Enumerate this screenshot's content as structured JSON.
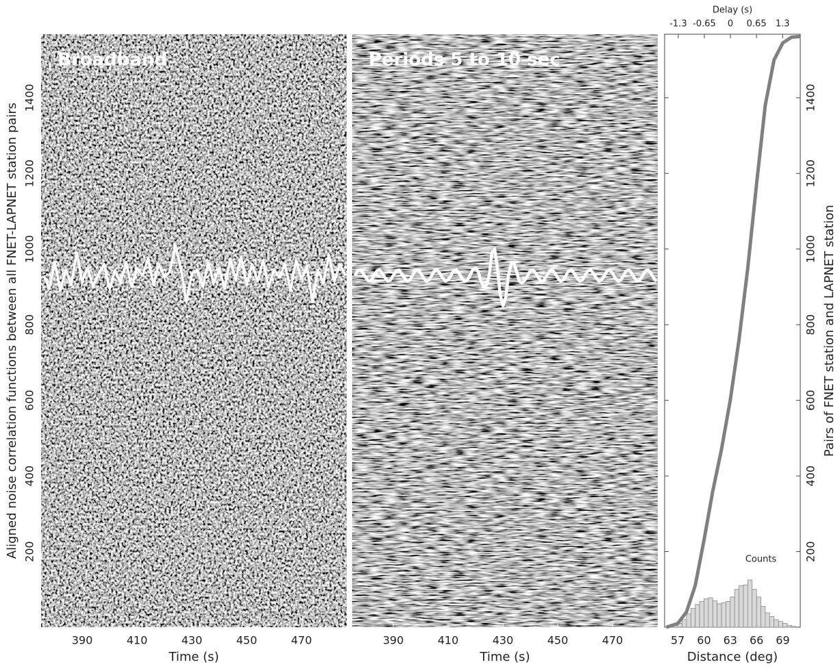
{
  "chart_data": [
    {
      "type": "line",
      "title": "Broadband",
      "x_label": "Time (s)",
      "y_label": "Aligned noise correlation functions between all FNET-LAPNET station pairs",
      "xlim": [
        375,
        486.5
      ],
      "xticks": [
        390,
        410,
        430,
        450,
        470
      ],
      "ylim": [
        0,
        1568
      ],
      "yticks": [
        200,
        400,
        600,
        800,
        1000,
        1200,
        1400
      ],
      "series": [
        {
          "color": "#ffffff",
          "x": [
            376,
            378,
            380,
            382,
            384,
            386,
            388,
            390,
            392,
            394,
            396,
            398,
            400,
            402,
            404,
            406,
            408,
            410,
            412,
            414,
            416,
            418,
            420,
            422,
            424,
            426,
            428,
            430,
            432,
            434,
            436,
            438,
            440,
            442,
            444,
            446,
            448,
            450,
            452,
            454,
            456,
            458,
            460,
            462,
            464,
            466,
            468,
            470,
            472,
            474,
            476,
            478,
            480,
            482,
            484,
            486
          ],
          "values": [
            930,
            895,
            965,
            890,
            945,
            905,
            990,
            915,
            950,
            900,
            935,
            960,
            895,
            945,
            910,
            965,
            900,
            950,
            930,
            975,
            905,
            960,
            925,
            940,
            1010,
            950,
            860,
            935,
            945,
            900,
            965,
            910,
            950,
            895,
            975,
            920,
            980,
            905,
            960,
            915,
            970,
            900,
            945,
            925,
            960,
            890,
            970,
            920,
            955,
            860,
            945,
            910,
            985,
            915,
            960,
            930
          ]
        }
      ]
    },
    {
      "type": "line",
      "title": "Periods 5 to 10 sec",
      "x_label": "Time (s)",
      "xlim": [
        375,
        486.5
      ],
      "xticks": [
        390,
        410,
        430,
        450,
        470
      ],
      "ylim": [
        0,
        1568
      ],
      "series": [
        {
          "color": "#ffffff",
          "x": [
            376,
            377,
            378,
            379,
            380,
            381,
            382,
            383,
            384,
            385,
            386,
            387,
            388,
            389,
            390,
            391,
            392,
            393,
            394,
            395,
            396,
            397,
            398,
            399,
            400,
            401,
            402,
            403,
            404,
            405,
            406,
            407,
            408,
            409,
            410,
            411,
            412,
            413,
            414,
            415,
            416,
            417,
            418,
            419,
            420,
            421,
            422,
            423,
            424,
            425,
            426,
            427,
            428,
            429,
            430,
            431,
            432,
            433,
            434,
            435,
            436,
            437,
            438,
            439,
            440,
            441,
            442,
            443,
            444,
            445,
            446,
            447,
            448,
            449,
            450,
            451,
            452,
            453,
            454,
            455,
            456,
            457,
            458,
            459,
            460,
            461,
            462,
            463,
            464,
            465,
            466,
            467,
            468,
            469,
            470,
            471,
            472,
            473,
            474,
            475,
            476,
            477,
            478,
            479,
            480,
            481,
            482,
            483,
            484,
            485,
            486
          ],
          "values": [
            930,
            942,
            945,
            936,
            924,
            915,
            918,
            930,
            942,
            945,
            936,
            924,
            915,
            918,
            930,
            942,
            945,
            936,
            924,
            915,
            918,
            930,
            942,
            945,
            936,
            924,
            915,
            918,
            930,
            942,
            945,
            936,
            924,
            915,
            918,
            930,
            942,
            945,
            936,
            924,
            915,
            918,
            930,
            945,
            950,
            940,
            915,
            900,
            905,
            930,
            990,
            1000,
            950,
            880,
            850,
            870,
            930,
            960,
            965,
            940,
            915,
            910,
            918,
            930,
            942,
            945,
            936,
            924,
            915,
            918,
            930,
            942,
            945,
            936,
            924,
            915,
            918,
            930,
            942,
            945,
            936,
            924,
            915,
            918,
            930,
            942,
            945,
            936,
            924,
            915,
            918,
            930,
            942,
            945,
            936,
            924,
            915,
            918,
            930,
            942,
            945,
            936,
            924,
            915,
            918,
            930,
            942,
            945,
            936,
            924,
            915
          ]
        }
      ]
    },
    {
      "type": "line",
      "x_label": "Distance (deg)",
      "x2_label": "Delay (s)",
      "y_label": "Pairs of FNET station and LAPNET station",
      "xlim": [
        55.5,
        71
      ],
      "xticks": [
        57,
        60,
        63,
        66,
        69
      ],
      "x2lim": [
        -1.64,
        1.74
      ],
      "x2ticks": [
        -1.3,
        -0.65,
        0,
        0.65,
        1.3
      ],
      "ylim": [
        0,
        1568
      ],
      "yticks": [
        200,
        400,
        600,
        800,
        1000,
        1200,
        1400
      ],
      "series": [
        {
          "color": "#808080",
          "x": [
            55.7,
            57,
            58,
            59,
            60,
            61,
            62,
            63,
            64,
            65,
            66,
            67,
            68,
            69,
            70,
            71
          ],
          "values": [
            0,
            10,
            40,
            110,
            230,
            360,
            470,
            600,
            760,
            950,
            1170,
            1380,
            1500,
            1545,
            1560,
            1562
          ]
        }
      ],
      "histogram": {
        "label": "Counts",
        "color": "#d9d9d9",
        "bins": [
          56,
          56.5,
          57,
          57.5,
          58,
          58.5,
          59,
          59.5,
          60,
          60.5,
          61,
          61.5,
          62,
          62.5,
          63,
          63.5,
          64,
          64.5,
          65,
          65.5,
          66,
          66.5,
          67,
          67.5,
          68,
          68.5,
          69,
          69.5,
          70,
          70.5
        ],
        "counts": [
          2,
          5,
          10,
          20,
          35,
          50,
          60,
          68,
          75,
          78,
          70,
          62,
          65,
          68,
          80,
          100,
          110,
          112,
          125,
          100,
          80,
          55,
          38,
          28,
          20,
          15,
          10,
          5,
          2
        ]
      }
    }
  ]
}
